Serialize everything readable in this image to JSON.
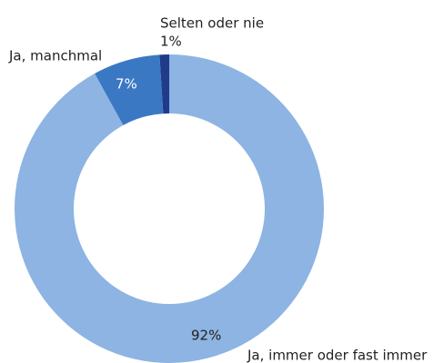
{
  "chart_data": {
    "type": "donut",
    "categories": [
      "Ja, immer oder fast immer",
      "Ja, manchmal",
      "Selten oder nie"
    ],
    "values": [
      92,
      7,
      1
    ],
    "value_labels": [
      "92%",
      "7%",
      "1%"
    ],
    "colors": [
      "#8db4e2",
      "#3a78c4",
      "#1f3b8a"
    ]
  }
}
